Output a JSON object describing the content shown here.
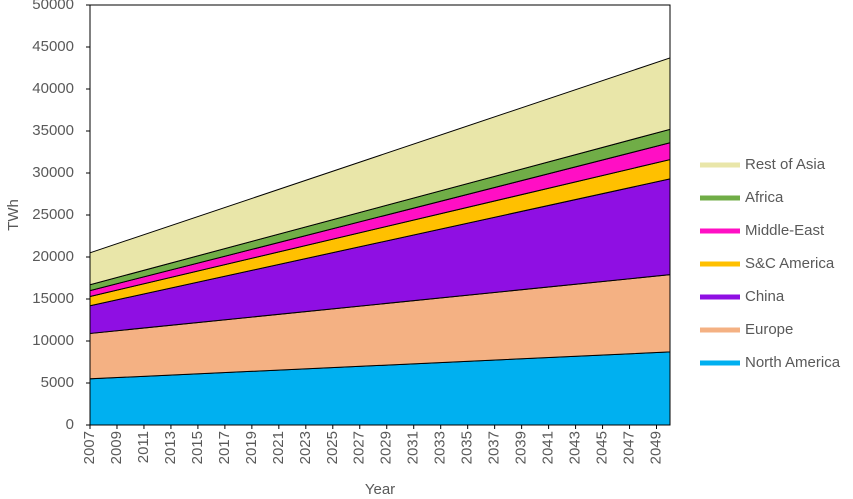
{
  "chart_data": {
    "type": "stacked_area",
    "x": [
      2007,
      2050
    ],
    "series": [
      {
        "name": "North America",
        "color": "#00b0f0",
        "values": [
          5500,
          8700
        ]
      },
      {
        "name": "Europe",
        "color": "#f4b183",
        "values": [
          5400,
          9200
        ]
      },
      {
        "name": "China",
        "color": "#8f0fe3",
        "values": [
          3300,
          11400
        ]
      },
      {
        "name": "S&C America",
        "color": "#ffc000",
        "values": [
          1100,
          2300
        ]
      },
      {
        "name": "Middle-East",
        "color": "#ff0fc4",
        "values": [
          700,
          2000
        ]
      },
      {
        "name": "Africa",
        "color": "#70ad47",
        "values": [
          700,
          1600
        ]
      },
      {
        "name": "Rest of Asia",
        "color": "#e9e6a9",
        "values": [
          3800,
          8500
        ]
      }
    ],
    "xlabel": "Year",
    "ylabel": "TWh",
    "xlim": [
      2007,
      2050
    ],
    "xticks": [
      2007,
      2009,
      2011,
      2013,
      2015,
      2017,
      2019,
      2021,
      2023,
      2025,
      2027,
      2029,
      2031,
      2033,
      2035,
      2037,
      2039,
      2041,
      2043,
      2045,
      2047,
      2049
    ],
    "ylim": [
      0,
      50000
    ],
    "yticks": [
      0,
      5000,
      10000,
      15000,
      20000,
      25000,
      30000,
      35000,
      40000,
      45000,
      50000
    ],
    "legend": "right"
  }
}
